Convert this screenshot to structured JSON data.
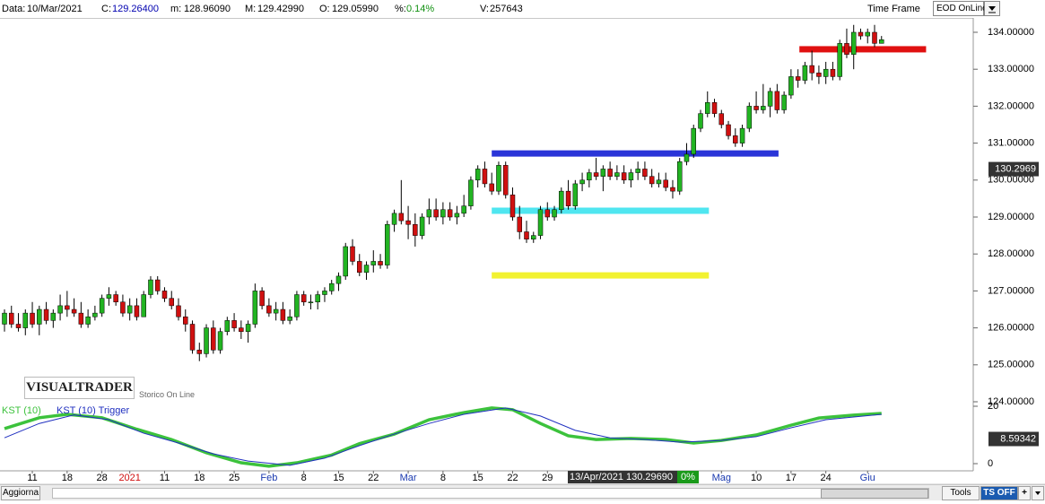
{
  "ui": {
    "header": [
      {
        "label": "Data:",
        "value": "10/Mar/2021"
      },
      {
        "label": "C:",
        "value": "129.26400",
        "color": "#0000b0"
      },
      {
        "label": "m:",
        "value": "128.96090"
      },
      {
        "label": "M:",
        "value": "129.42990"
      },
      {
        "label": "O:",
        "value": "129.05990"
      },
      {
        "label": "%:",
        "value": "0.14%",
        "color": "#109010"
      },
      {
        "label": "V:",
        "value": "257643"
      }
    ],
    "time_frame_label": "Time Frame",
    "time_frame": "EOD OnLine",
    "logo": "VISUALTRADER",
    "logo_subtitle": "Storico On Line",
    "cursor_date": "13/Apr/2021 130.29690",
    "cursor_change": "0%",
    "toolbar": {
      "refresh": "Aggiorna",
      "tools": "Tools",
      "ts": "TS OFF",
      "add": "+"
    }
  },
  "chart_data": {
    "type": "candlestick",
    "up_color": "#22b422",
    "down_color": "#d01010",
    "ohlc": [
      [
        126.1,
        126.5,
        125.9,
        126.4
      ],
      [
        126.4,
        126.6,
        126.0,
        126.1
      ],
      [
        126.1,
        126.4,
        125.9,
        126.0
      ],
      [
        126.0,
        126.5,
        125.8,
        126.4
      ],
      [
        126.4,
        126.7,
        126.0,
        126.1
      ],
      [
        126.1,
        126.6,
        125.8,
        126.5
      ],
      [
        126.5,
        126.7,
        126.1,
        126.2
      ],
      [
        126.2,
        126.5,
        126.0,
        126.4
      ],
      [
        126.4,
        126.9,
        126.2,
        126.6
      ],
      [
        126.6,
        127.0,
        126.3,
        126.5
      ],
      [
        126.5,
        126.8,
        126.3,
        126.4
      ],
      [
        126.4,
        126.7,
        126.0,
        126.1
      ],
      [
        126.1,
        126.5,
        126.0,
        126.3
      ],
      [
        126.3,
        126.6,
        126.2,
        126.4
      ],
      [
        126.4,
        126.9,
        126.3,
        126.8
      ],
      [
        126.8,
        127.1,
        126.6,
        126.9
      ],
      [
        126.9,
        127.0,
        126.6,
        126.7
      ],
      [
        126.7,
        126.9,
        126.3,
        126.4
      ],
      [
        126.4,
        126.8,
        126.2,
        126.6
      ],
      [
        126.6,
        126.8,
        126.2,
        126.3
      ],
      [
        126.3,
        127.0,
        126.3,
        126.9
      ],
      [
        126.9,
        127.4,
        126.8,
        127.3
      ],
      [
        127.3,
        127.4,
        126.9,
        127.0
      ],
      [
        127.0,
        127.1,
        126.7,
        126.8
      ],
      [
        126.8,
        127.0,
        126.5,
        126.6
      ],
      [
        126.6,
        126.8,
        126.2,
        126.3
      ],
      [
        126.3,
        126.5,
        125.9,
        126.1
      ],
      [
        126.1,
        126.2,
        125.3,
        125.4
      ],
      [
        125.4,
        125.6,
        125.1,
        125.3
      ],
      [
        125.3,
        126.1,
        125.2,
        126.0
      ],
      [
        126.0,
        126.2,
        125.3,
        125.4
      ],
      [
        125.4,
        126.0,
        125.3,
        125.9
      ],
      [
        125.9,
        126.3,
        125.8,
        126.2
      ],
      [
        126.2,
        126.4,
        125.9,
        126.0
      ],
      [
        126.0,
        126.2,
        125.7,
        125.9
      ],
      [
        125.9,
        126.2,
        125.6,
        126.1
      ],
      [
        126.1,
        127.2,
        126.0,
        127.0
      ],
      [
        127.0,
        127.1,
        126.5,
        126.6
      ],
      [
        126.6,
        126.8,
        126.3,
        126.4
      ],
      [
        126.4,
        126.7,
        126.2,
        126.5
      ],
      [
        126.5,
        126.7,
        126.1,
        126.2
      ],
      [
        126.2,
        126.5,
        126.1,
        126.3
      ],
      [
        126.3,
        127.0,
        126.2,
        126.9
      ],
      [
        126.9,
        127.0,
        126.6,
        126.7
      ],
      [
        126.7,
        126.9,
        126.5,
        126.7
      ],
      [
        126.7,
        127.0,
        126.5,
        126.9
      ],
      [
        126.9,
        127.1,
        126.7,
        127.0
      ],
      [
        127.0,
        127.3,
        126.9,
        127.2
      ],
      [
        127.2,
        127.5,
        127.0,
        127.4
      ],
      [
        127.4,
        128.3,
        127.3,
        128.2
      ],
      [
        128.2,
        128.4,
        127.7,
        127.8
      ],
      [
        127.8,
        128.0,
        127.4,
        127.5
      ],
      [
        127.5,
        127.8,
        127.3,
        127.7
      ],
      [
        127.7,
        128.1,
        127.5,
        127.8
      ],
      [
        127.8,
        128.0,
        127.6,
        127.7
      ],
      [
        127.7,
        128.9,
        127.6,
        128.8
      ],
      [
        128.8,
        129.2,
        128.6,
        129.1
      ],
      [
        129.1,
        130.0,
        128.8,
        128.9
      ],
      [
        128.9,
        129.3,
        128.4,
        128.8
      ],
      [
        128.8,
        129.1,
        128.2,
        128.5
      ],
      [
        128.5,
        129.1,
        128.4,
        129.0
      ],
      [
        129.0,
        129.5,
        128.8,
        129.2
      ],
      [
        129.2,
        129.5,
        128.9,
        129.0
      ],
      [
        129.0,
        129.4,
        128.8,
        129.2
      ],
      [
        129.2,
        129.4,
        128.9,
        129.0
      ],
      [
        129.0,
        129.3,
        128.8,
        129.1
      ],
      [
        129.1,
        129.6,
        129.0,
        129.3
      ],
      [
        129.3,
        130.1,
        129.2,
        130.0
      ],
      [
        130.0,
        130.4,
        129.8,
        130.3
      ],
      [
        130.3,
        130.5,
        129.8,
        129.9
      ],
      [
        129.9,
        130.2,
        129.6,
        129.7
      ],
      [
        129.7,
        130.5,
        129.6,
        130.4
      ],
      [
        130.4,
        130.5,
        129.5,
        129.6
      ],
      [
        129.6,
        129.8,
        128.9,
        129.0
      ],
      [
        129.0,
        129.3,
        128.4,
        128.6
      ],
      [
        128.6,
        128.9,
        128.3,
        128.4
      ],
      [
        128.4,
        128.6,
        128.3,
        128.5
      ],
      [
        128.5,
        129.3,
        128.4,
        129.2
      ],
      [
        129.2,
        129.4,
        128.9,
        129.0
      ],
      [
        129.0,
        129.3,
        128.9,
        129.2
      ],
      [
        129.2,
        129.8,
        129.1,
        129.7
      ],
      [
        129.7,
        130.0,
        129.2,
        129.3
      ],
      [
        129.3,
        130.0,
        129.2,
        129.9
      ],
      [
        129.9,
        130.2,
        129.7,
        130.0
      ],
      [
        130.0,
        130.3,
        129.8,
        130.2
      ],
      [
        130.2,
        130.6,
        130.0,
        130.1
      ],
      [
        130.1,
        130.4,
        129.7,
        130.3
      ],
      [
        130.3,
        130.5,
        130.0,
        130.1
      ],
      [
        130.1,
        130.4,
        130.0,
        130.2
      ],
      [
        130.2,
        130.4,
        129.9,
        130.0
      ],
      [
        130.0,
        130.3,
        129.8,
        130.2
      ],
      [
        130.2,
        130.5,
        130.0,
        130.3
      ],
      [
        130.3,
        130.5,
        130.0,
        130.1
      ],
      [
        130.1,
        130.3,
        129.8,
        129.9
      ],
      [
        129.9,
        130.2,
        129.8,
        130.0
      ],
      [
        130.0,
        130.2,
        129.7,
        129.8
      ],
      [
        129.8,
        130.0,
        129.5,
        129.7
      ],
      [
        129.7,
        130.6,
        129.6,
        130.5
      ],
      [
        130.5,
        131.0,
        130.4,
        130.7
      ],
      [
        130.7,
        131.5,
        130.6,
        131.4
      ],
      [
        131.4,
        131.9,
        131.3,
        131.8
      ],
      [
        131.8,
        132.4,
        131.7,
        132.1
      ],
      [
        132.1,
        132.2,
        131.7,
        131.8
      ],
      [
        131.8,
        131.9,
        131.4,
        131.5
      ],
      [
        131.5,
        131.6,
        131.1,
        131.2
      ],
      [
        131.2,
        131.4,
        130.9,
        131.0
      ],
      [
        131.0,
        131.5,
        130.9,
        131.4
      ],
      [
        131.4,
        132.1,
        131.3,
        132.0
      ],
      [
        132.0,
        132.4,
        131.8,
        131.9
      ],
      [
        131.9,
        132.6,
        131.8,
        132.0
      ],
      [
        132.0,
        132.5,
        131.7,
        132.4
      ],
      [
        132.4,
        132.6,
        131.8,
        131.9
      ],
      [
        131.9,
        132.4,
        131.8,
        132.3
      ],
      [
        132.3,
        133.0,
        132.2,
        132.8
      ],
      [
        132.8,
        133.0,
        132.5,
        132.7
      ],
      [
        132.7,
        133.2,
        132.6,
        133.1
      ],
      [
        133.1,
        133.5,
        132.7,
        132.9
      ],
      [
        132.9,
        133.1,
        132.6,
        132.8
      ],
      [
        132.8,
        133.2,
        132.6,
        133.0
      ],
      [
        133.0,
        133.2,
        132.7,
        132.8
      ],
      [
        132.8,
        133.8,
        132.7,
        133.7
      ],
      [
        133.7,
        134.1,
        133.3,
        133.4
      ],
      [
        133.4,
        134.2,
        133.0,
        134.0
      ],
      [
        134.0,
        134.1,
        133.8,
        133.9
      ],
      [
        133.9,
        134.1,
        133.7,
        134.0
      ],
      [
        134.0,
        134.2,
        133.6,
        133.7
      ],
      [
        133.7,
        133.9,
        133.7,
        133.8
      ]
    ],
    "ylim": [
      124.073,
      134.461
    ],
    "yticks": [
      {
        "value": 124,
        "label": "124.00000"
      },
      {
        "value": 125,
        "label": "125.00000"
      },
      {
        "value": 126,
        "label": "126.00000"
      },
      {
        "value": 127,
        "label": "127.00000"
      },
      {
        "value": 128,
        "label": "128.00000"
      },
      {
        "value": 129,
        "label": "129.00000"
      },
      {
        "value": 130,
        "label": "130.00000"
      },
      {
        "value": 131,
        "label": "131.00000"
      },
      {
        "value": 132,
        "label": "132.00000"
      },
      {
        "value": 133,
        "label": "133.00000"
      },
      {
        "value": 134,
        "label": "134.00000"
      }
    ],
    "xticks": [
      {
        "value": 4,
        "label": "11"
      },
      {
        "value": 9,
        "label": "18"
      },
      {
        "value": 14,
        "label": "28"
      },
      {
        "value": 18,
        "label": "2021",
        "color": "#d01010"
      },
      {
        "value": 23,
        "label": "11"
      },
      {
        "value": 28,
        "label": "18"
      },
      {
        "value": 33,
        "label": "25"
      },
      {
        "value": 38,
        "label": "Feb",
        "color": "#1a3ab0"
      },
      {
        "value": 43,
        "label": "8"
      },
      {
        "value": 48,
        "label": "15"
      },
      {
        "value": 53,
        "label": "22"
      },
      {
        "value": 58,
        "label": "Mar",
        "color": "#1a3ab0"
      },
      {
        "value": 63,
        "label": "8"
      },
      {
        "value": 68,
        "label": "15"
      },
      {
        "value": 73,
        "label": "22"
      },
      {
        "value": 78,
        "label": "29"
      },
      {
        "value": 103,
        "label": "Mag",
        "color": "#1a3ab0"
      },
      {
        "value": 108,
        "label": "10"
      },
      {
        "value": 113,
        "label": "17"
      },
      {
        "value": 118,
        "label": "24"
      },
      {
        "value": 124,
        "label": "Giu",
        "color": "#1a3ab0"
      }
    ],
    "levels": [
      {
        "value": 130.72,
        "color": "#2a35d8",
        "from": 70,
        "to": 111.2
      },
      {
        "value": 129.17,
        "color": "#4fe6f0",
        "from": 70,
        "to": 101.2
      },
      {
        "value": 127.42,
        "color": "#f2f230",
        "from": 70,
        "to": 101.2
      },
      {
        "value": 133.54,
        "color": "#e01010",
        "from": 114.2,
        "to": 132.4
      }
    ],
    "cursor_price": 130.2969,
    "indicator": {
      "type": "line",
      "ylim": [
        -4.06,
        22.5
      ],
      "yticks": [
        0,
        20
      ],
      "value_box": 8.59342,
      "series": [
        {
          "name": "KST (10)",
          "color": "#3cc23c",
          "x": [
            0,
            5,
            9,
            14,
            19,
            24,
            29,
            34,
            38,
            42,
            47,
            51,
            56,
            61,
            66,
            70,
            73,
            77,
            81,
            85,
            90,
            95,
            99,
            103,
            108,
            113,
            117,
            122,
            126
          ],
          "values": [
            12.2,
            16,
            17.2,
            16,
            12,
            8.4,
            3.8,
            0.3,
            -0.9,
            0.3,
            3,
            7,
            10.3,
            15.3,
            17.8,
            19.4,
            18.8,
            14,
            9.7,
            8.4,
            8.8,
            8.4,
            7.2,
            8.1,
            10,
            13.4,
            15.9,
            16.9,
            17.5
          ]
        },
        {
          "name": "KST (10) Trigger",
          "color": "#2030c0",
          "x": [
            0,
            5,
            10,
            15,
            20,
            25,
            30,
            35,
            41,
            46,
            51,
            56,
            61,
            66,
            72,
            77,
            82,
            87,
            92,
            97,
            103,
            108,
            113,
            118,
            126
          ],
          "values": [
            9,
            14,
            17,
            15.3,
            10.6,
            7.2,
            3.4,
            0.9,
            -0.6,
            1.9,
            6.3,
            10.3,
            14,
            17.2,
            19.4,
            16.6,
            11.6,
            9,
            8.4,
            7.5,
            8.1,
            9.4,
            12.5,
            15.3,
            17.2
          ]
        }
      ]
    }
  }
}
